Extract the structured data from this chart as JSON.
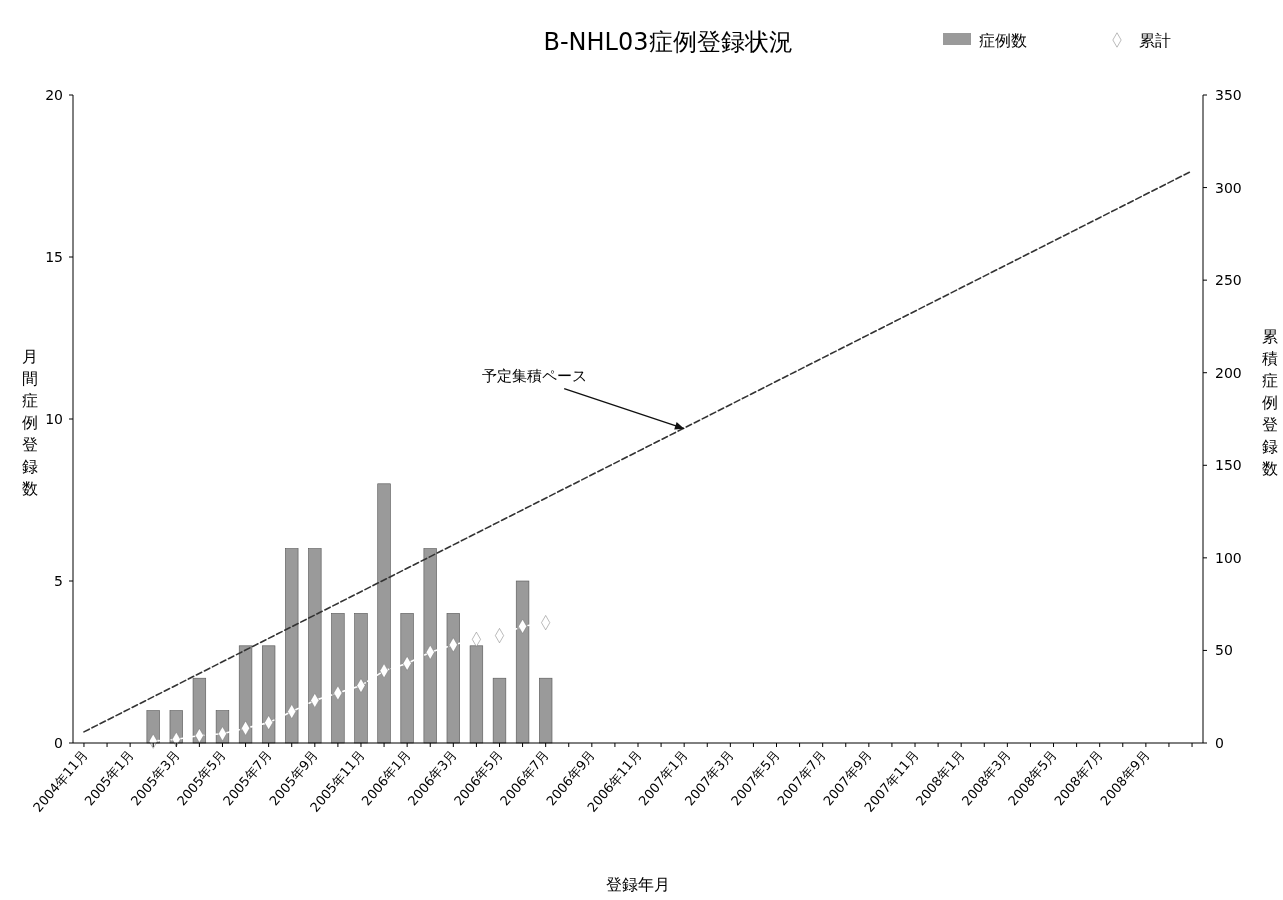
{
  "chart_data": {
    "type": "bar",
    "title": "B-NHL03症例登録状況",
    "xlabel": "登録年月",
    "ylabel": "月間症例登録数",
    "y2label": "累積症例登録数",
    "categories": [
      "2004年11月",
      null,
      "2005年1月",
      null,
      "2005年3月",
      null,
      "2005年5月",
      null,
      "2005年7月",
      null,
      "2005年9月",
      null,
      "2005年11月",
      null,
      "2006年1月",
      null,
      "2006年3月",
      null,
      "2006年5月",
      null,
      "2006年7月",
      null,
      "2006年9月",
      null,
      "2006年11月",
      null,
      "2007年1月",
      null,
      "2007年3月",
      null,
      "2007年5月",
      null,
      "2007年7月",
      null,
      "2007年9月",
      null,
      "2007年11月",
      null,
      "2008年1月",
      null,
      "2008年3月",
      null,
      "2008年5月",
      null,
      "2008年7月",
      null,
      "2008年9月",
      null,
      null
    ],
    "series": [
      {
        "name": "症例数",
        "color": "#9a9a9a",
        "values": [
          null,
          null,
          null,
          1,
          1,
          2,
          1,
          3,
          3,
          6,
          6,
          4,
          4,
          8,
          4,
          6,
          4,
          3,
          2,
          5,
          2,
          null,
          null,
          null,
          null,
          null,
          null,
          null,
          null,
          null,
          null,
          null,
          null,
          null,
          null,
          null,
          null,
          null,
          null,
          null,
          null,
          null,
          null,
          null,
          null,
          null,
          null,
          null,
          null
        ]
      },
      {
        "name": "累計",
        "type": "line",
        "axis": "y2",
        "color": "#ffffff",
        "marker": "diamond",
        "line_style": "dashed",
        "values": [
          null,
          null,
          null,
          1,
          2,
          4,
          5,
          8,
          11,
          17,
          23,
          27,
          31,
          39,
          43,
          49,
          53,
          56,
          58,
          63,
          65,
          null,
          null,
          null,
          null,
          null,
          null,
          null,
          null,
          null,
          null,
          null,
          null,
          null,
          null,
          null,
          null,
          null,
          null,
          null,
          null,
          null,
          null,
          null,
          null,
          null,
          null,
          null,
          null
        ]
      },
      {
        "type": "line",
        "axis": "y2",
        "color": "#333333",
        "marker": "none",
        "line_style": "dashed",
        "values": [
          6,
          null,
          null,
          null,
          null,
          null,
          null,
          null,
          null,
          null,
          null,
          null,
          null,
          null,
          null,
          null,
          null,
          null,
          null,
          null,
          null,
          null,
          null,
          null,
          null,
          null,
          null,
          null,
          null,
          null,
          null,
          null,
          null,
          null,
          null,
          null,
          null,
          null,
          null,
          null,
          null,
          null,
          null,
          null,
          null,
          null,
          null,
          null,
          309
        ]
      }
    ],
    "ylim": [
      0,
      20
    ],
    "yticks": [
      0,
      5,
      10,
      15,
      20
    ],
    "y2lim": [
      0,
      350
    ],
    "y2ticks": [
      0,
      50,
      100,
      150,
      200,
      250,
      300,
      350
    ],
    "annotations": [
      {
        "text": "予定集積ペース",
        "x": "2007年1月",
        "y": 9.7
      }
    ],
    "legend": "top right",
    "grid": false
  }
}
